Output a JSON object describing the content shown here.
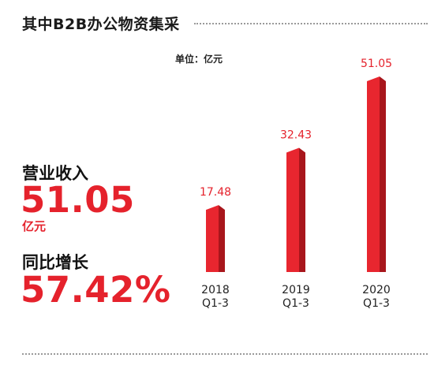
{
  "title": "其中B2B办公物资集采",
  "unit_note": "单位：亿元",
  "colors": {
    "accent": "#e5222c",
    "bar_front": "#e8262f",
    "bar_side": "#a8161c",
    "bar_top": "#f04a52",
    "text": "#111111"
  },
  "stats": {
    "revenue_label": "营业收入",
    "revenue_value": "51.05",
    "revenue_unit": "亿元",
    "growth_label": "同比增长",
    "growth_value": "57.42%"
  },
  "chart_data": {
    "type": "bar",
    "categories": [
      "2018 Q1-3",
      "2019 Q1-3",
      "2020 Q1-3"
    ],
    "category_lines": [
      [
        "2018",
        "Q1-3"
      ],
      [
        "2019",
        "Q1-3"
      ],
      [
        "2020",
        "Q1-3"
      ]
    ],
    "values": [
      17.48,
      32.43,
      51.05
    ],
    "value_labels": [
      "17.48",
      "32.43",
      "51.05"
    ],
    "unit": "亿元",
    "ylim": [
      0,
      51.05
    ],
    "grid": false,
    "legend": "none",
    "style": "3d-bar"
  }
}
